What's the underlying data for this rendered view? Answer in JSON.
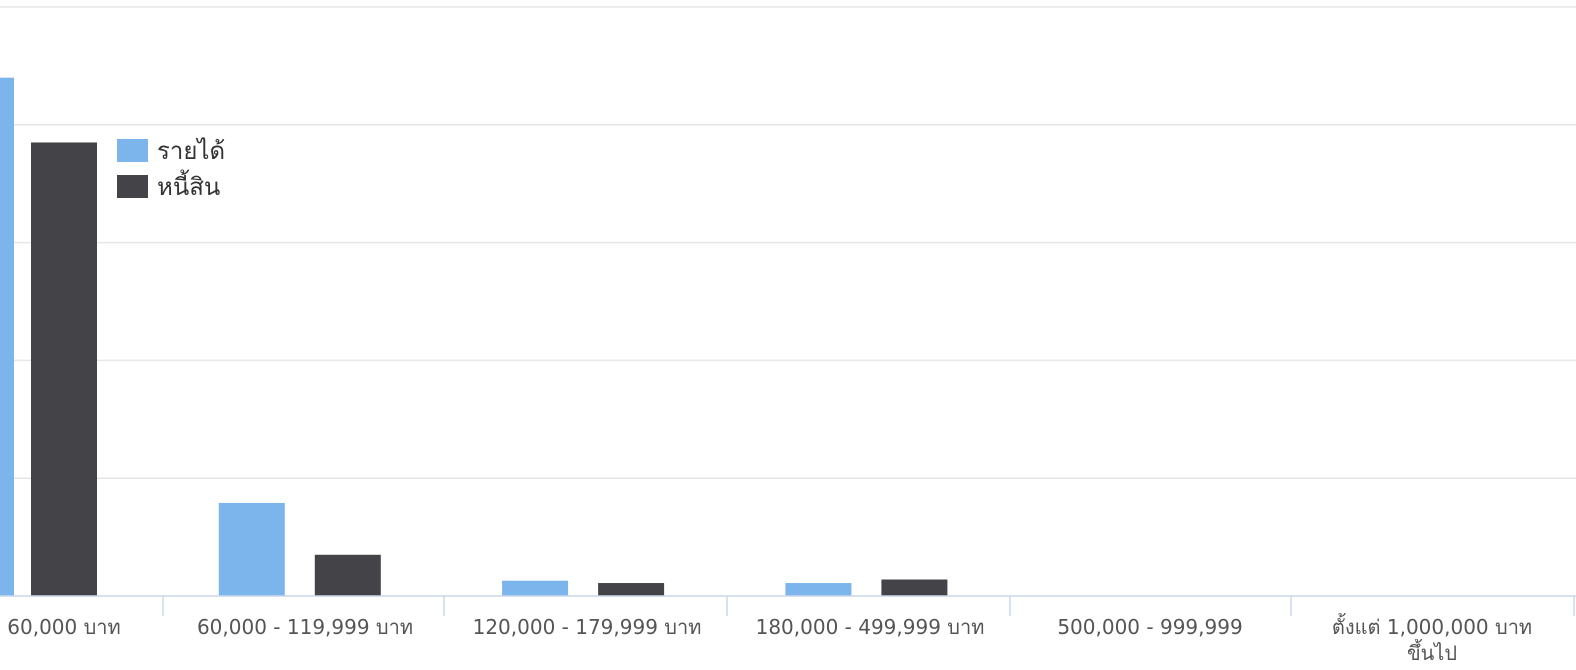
{
  "chart_data": {
    "type": "bar",
    "categories": [
      "60,000 บาท",
      "60,000 - 119,999 บาท",
      "120,000 - 179,999 บาท",
      "180,000 - 499,999 บาท",
      "500,000 - 999,999",
      "ตั้งแต่ 1,000,000 บาท ขึ้นไป"
    ],
    "category_label_lines": [
      [
        "60,000 บาท"
      ],
      [
        "60,000 - 119,999 บาท"
      ],
      [
        "120,000 - 179,999 บาท"
      ],
      [
        "180,000 - 499,999 บาท"
      ],
      [
        "500,000 - 999,999"
      ],
      [
        "ตั้งแต่ 1,000,000 บาท",
        "ขึ้นไป"
      ]
    ],
    "series": [
      {
        "name": "รายได้",
        "color": "#7cb5ec",
        "values": [
          4.4,
          0.79,
          0.13,
          0.11,
          0,
          0
        ]
      },
      {
        "name": "หนี้สิน",
        "color": "#434348",
        "values": [
          3.85,
          0.35,
          0.11,
          0.14,
          0,
          0
        ]
      }
    ],
    "title": "",
    "xlabel": "",
    "ylabel": "",
    "ylim": [
      0,
      5
    ],
    "grid": true,
    "legend": {
      "position": "top-left"
    }
  }
}
